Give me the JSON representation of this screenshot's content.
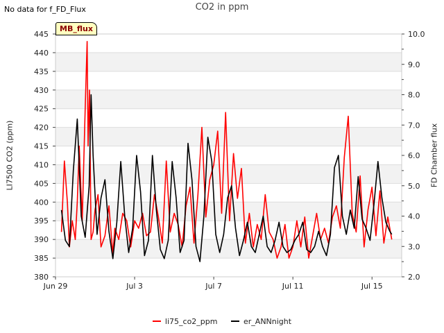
{
  "no_data_text": "No data for f_FD_Flux",
  "chart_data": {
    "type": "line",
    "title": "CO2 in ppm",
    "badge": "MB_flux",
    "ylabel_left": "LI7500 CO2 (ppm)",
    "ylabel_right": "FD Chamber flux",
    "x_range": [
      0,
      17.5
    ],
    "ylim_left": [
      380,
      445
    ],
    "ylim_right": [
      2.0,
      10.0
    ],
    "x_ticks": [
      {
        "value": 0,
        "label": "Jun 29"
      },
      {
        "value": 4,
        "label": "Jul 3"
      },
      {
        "value": 8,
        "label": "Jul 7"
      },
      {
        "value": 12,
        "label": "Jul 11"
      },
      {
        "value": 16,
        "label": "Jul 15"
      }
    ],
    "y_ticks_left": [
      "380",
      "385",
      "390",
      "395",
      "400",
      "405",
      "410",
      "415",
      "420",
      "425",
      "430",
      "435",
      "440",
      "445"
    ],
    "y_ticks_right": [
      "2.0",
      "3.0",
      "4.0",
      "5.0",
      "6.0",
      "7.0",
      "8.0",
      "9.0",
      "10.0"
    ],
    "grid": true,
    "series": [
      {
        "name": "li75_co2_ppm",
        "color": "#ff0000",
        "axis": "left",
        "x": [
          0.3,
          0.45,
          0.6,
          0.7,
          0.85,
          1.0,
          1.1,
          1.2,
          1.35,
          1.5,
          1.6,
          1.65,
          1.72,
          1.8,
          1.9,
          2.0,
          2.15,
          2.3,
          2.5,
          2.7,
          2.9,
          3.0,
          3.2,
          3.4,
          3.6,
          3.8,
          4.0,
          4.2,
          4.4,
          4.6,
          4.8,
          5.0,
          5.2,
          5.4,
          5.6,
          5.8,
          6.0,
          6.2,
          6.4,
          6.6,
          6.8,
          7.0,
          7.2,
          7.4,
          7.6,
          7.8,
          8.0,
          8.2,
          8.4,
          8.6,
          8.8,
          9.0,
          9.2,
          9.4,
          9.6,
          9.8,
          10.0,
          10.2,
          10.4,
          10.6,
          10.8,
          11.0,
          11.2,
          11.4,
          11.6,
          11.8,
          12.0,
          12.2,
          12.4,
          12.6,
          12.8,
          13.0,
          13.2,
          13.4,
          13.6,
          13.8,
          14.0,
          14.2,
          14.4,
          14.6,
          14.8,
          15.0,
          15.2,
          15.4,
          15.6,
          15.8,
          16.0,
          16.2,
          16.4,
          16.6,
          16.8,
          17.0
        ],
        "values": [
          392,
          411,
          400,
          388,
          395,
          390,
          400,
          415,
          395,
          425,
          443,
          415,
          430,
          390,
          392,
          398,
          402,
          388,
          391,
          399,
          386,
          393,
          390,
          397,
          395,
          388,
          395,
          393,
          397,
          391,
          392,
          402,
          396,
          389,
          411,
          392,
          397,
          394,
          388,
          399,
          404,
          389,
          402,
          420,
          396,
          406,
          410,
          419,
          397,
          424,
          395,
          413,
          401,
          409,
          389,
          397,
          388,
          394,
          390,
          402,
          392,
          390,
          385,
          388,
          394,
          385,
          388,
          395,
          388,
          396,
          385,
          391,
          397,
          390,
          393,
          389,
          396,
          399,
          393,
          412,
          423,
          397,
          392,
          407,
          388,
          398,
          404,
          391,
          403,
          389,
          396,
          390
        ]
      },
      {
        "name": "er_ANNnight",
        "color": "#000000",
        "axis": "right",
        "x": [
          0.3,
          0.5,
          0.7,
          0.9,
          1.1,
          1.3,
          1.5,
          1.7,
          1.8,
          1.9,
          2.1,
          2.3,
          2.5,
          2.7,
          2.9,
          3.1,
          3.3,
          3.5,
          3.7,
          3.9,
          4.1,
          4.3,
          4.5,
          4.7,
          4.9,
          5.1,
          5.3,
          5.5,
          5.7,
          5.9,
          6.1,
          6.3,
          6.5,
          6.7,
          6.9,
          7.1,
          7.3,
          7.5,
          7.7,
          7.9,
          8.1,
          8.3,
          8.5,
          8.7,
          8.9,
          9.1,
          9.3,
          9.5,
          9.7,
          9.9,
          10.1,
          10.3,
          10.5,
          10.7,
          10.9,
          11.1,
          11.3,
          11.5,
          11.7,
          11.9,
          12.1,
          12.3,
          12.5,
          12.7,
          12.9,
          13.1,
          13.3,
          13.5,
          13.7,
          13.9,
          14.1,
          14.3,
          14.5,
          14.7,
          14.9,
          15.1,
          15.3,
          15.5,
          15.7,
          15.9,
          16.1,
          16.3,
          16.5,
          16.7,
          16.9,
          17.0
        ],
        "values": [
          4.2,
          3.2,
          3.0,
          5.5,
          7.2,
          4.0,
          3.3,
          5.0,
          8.0,
          6.0,
          3.4,
          4.6,
          5.2,
          3.5,
          2.6,
          3.8,
          5.8,
          4.0,
          2.8,
          3.6,
          6.0,
          4.8,
          2.7,
          3.2,
          6.0,
          4.2,
          2.9,
          2.6,
          3.2,
          5.8,
          4.6,
          2.8,
          3.2,
          6.4,
          5.2,
          3.0,
          2.5,
          4.0,
          6.6,
          5.8,
          3.4,
          2.8,
          3.4,
          4.6,
          5.0,
          3.6,
          2.7,
          3.2,
          3.8,
          3.0,
          2.8,
          3.4,
          4.0,
          3.0,
          2.8,
          3.2,
          3.8,
          3.0,
          2.8,
          2.9,
          3.2,
          3.4,
          3.8,
          2.9,
          2.8,
          3.0,
          3.5,
          3.0,
          2.7,
          3.4,
          5.6,
          6.0,
          4.0,
          3.4,
          4.2,
          3.6,
          5.3,
          3.9,
          3.6,
          3.2,
          4.4,
          5.8,
          4.6,
          3.8,
          3.5,
          3.4
        ]
      }
    ]
  }
}
